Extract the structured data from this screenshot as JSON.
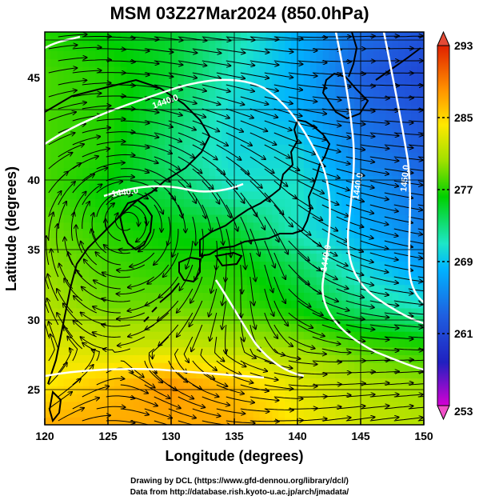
{
  "title": "MSM 03Z27Mar2024 (850.0hPa)",
  "xlabel": "Longitude (degrees)",
  "ylabel": "Latitude  (degrees)",
  "x_ticks": [
    "120",
    "125",
    "130",
    "135",
    "140",
    "145",
    "150"
  ],
  "y_ticks": [
    "25",
    "30",
    "35",
    "40",
    "45"
  ],
  "colorbar": {
    "ticks": [
      "293",
      "285",
      "277",
      "269",
      "261",
      "253"
    ],
    "min": 253,
    "max": 293
  },
  "contour_labels": [
    "1440.0",
    "1440.0",
    "1440.0",
    "1440.0",
    "1450.0"
  ],
  "credits": {
    "line1": "Drawing by DCL (https://www.gfd-dennou.org/library/dcl/)",
    "line2": "Data from http://database.rish.kyoto-u.ac.jp/arch/jmadata/"
  },
  "chart_data": {
    "type": "heatmap",
    "title": "MSM 03Z27Mar2024 (850.0hPa)",
    "xlabel": "Longitude (degrees)",
    "ylabel": "Latitude  (degrees)",
    "xlim": [
      120,
      150
    ],
    "ylim": [
      22.4,
      47.6
    ],
    "colorbar_range": [
      253,
      293
    ],
    "colormap": [
      "#d400d4",
      "#2020c0",
      "#1f5fe0",
      "#00b4ff",
      "#1de6c8",
      "#00d000",
      "#a0e000",
      "#ffe800",
      "#ff9000",
      "#e02000"
    ],
    "temperature_grid": {
      "lon": [
        120,
        125,
        130,
        135,
        140,
        145,
        150
      ],
      "lat": [
        47.5,
        45,
        42.5,
        40,
        37.5,
        35,
        32.5,
        30,
        27.5,
        25,
        22.5
      ],
      "values": [
        [
          277,
          276,
          275,
          272,
          268,
          264,
          262
        ],
        [
          278,
          277,
          275,
          271,
          268,
          263,
          261
        ],
        [
          278,
          277,
          274,
          270,
          268,
          264,
          262
        ],
        [
          278,
          277,
          273,
          270,
          270,
          265,
          263
        ],
        [
          278,
          276,
          274,
          271,
          271,
          267,
          264
        ],
        [
          279,
          277,
          276,
          275,
          271,
          268,
          265
        ],
        [
          280,
          278,
          277,
          277,
          274,
          270,
          267
        ],
        [
          281,
          279,
          279,
          278,
          276,
          273,
          271
        ],
        [
          283,
          282,
          282,
          281,
          280,
          278,
          277
        ],
        [
          284,
          286,
          288,
          286,
          283,
          281,
          280
        ],
        [
          287,
          287,
          287,
          287,
          284,
          282,
          281
        ]
      ]
    },
    "grid": true
  }
}
